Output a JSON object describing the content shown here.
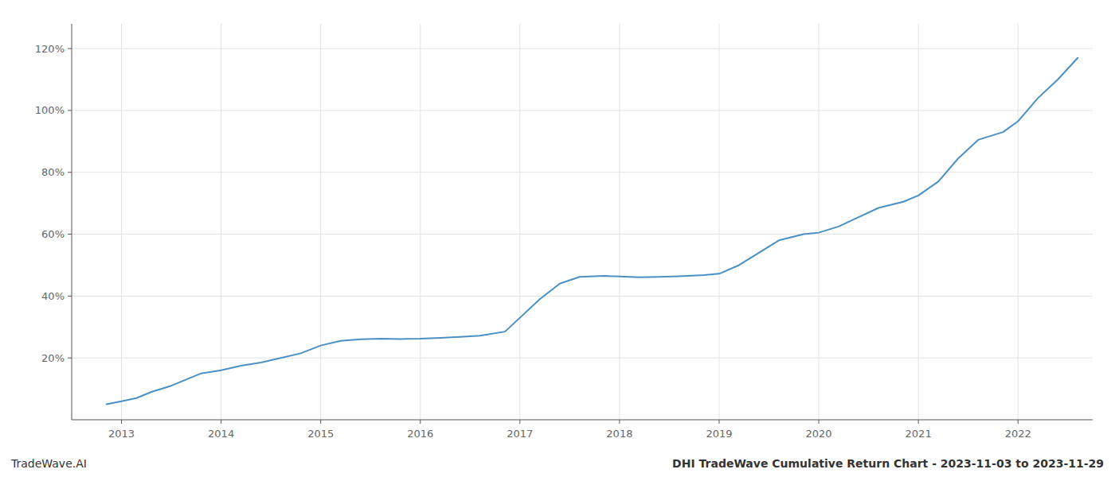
{
  "chart_data": {
    "type": "line",
    "title": "DHI TradeWave Cumulative Return Chart - 2023-11-03 to 2023-11-29",
    "annotations": [
      "TradeWave.AI"
    ],
    "color": "#4a90c4",
    "grid": true,
    "x": [
      2012.85,
      2013.0,
      2013.15,
      2013.3,
      2013.5,
      2013.65,
      2013.8,
      2014.0,
      2014.2,
      2014.4,
      2014.6,
      2014.8,
      2015.0,
      2015.2,
      2015.4,
      2015.6,
      2015.8,
      2016.0,
      2016.2,
      2016.4,
      2016.6,
      2016.85,
      2017.0,
      2017.2,
      2017.4,
      2017.6,
      2017.85,
      2018.0,
      2018.2,
      2018.4,
      2018.6,
      2018.85,
      2019.0,
      2019.2,
      2019.4,
      2019.6,
      2019.85,
      2020.0,
      2020.2,
      2020.4,
      2020.6,
      2020.85,
      2021.0,
      2021.2,
      2021.4,
      2021.6,
      2021.85,
      2022.0,
      2022.2,
      2022.4,
      2022.6
    ],
    "values": [
      0.05,
      0.06,
      0.07,
      0.09,
      0.11,
      0.13,
      0.15,
      0.16,
      0.175,
      0.185,
      0.2,
      0.215,
      0.24,
      0.255,
      0.26,
      0.262,
      0.261,
      0.262,
      0.265,
      0.268,
      0.272,
      0.285,
      0.33,
      0.39,
      0.44,
      0.462,
      0.465,
      0.463,
      0.461,
      0.462,
      0.464,
      0.468,
      0.472,
      0.5,
      0.54,
      0.58,
      0.6,
      0.605,
      0.625,
      0.655,
      0.685,
      0.705,
      0.725,
      0.77,
      0.845,
      0.905,
      0.93,
      0.965,
      1.04,
      1.1,
      1.17
    ],
    "xlim": [
      2012.5,
      2022.75
    ],
    "xticks": [
      2013,
      2014,
      2015,
      2016,
      2017,
      2018,
      2019,
      2020,
      2021,
      2022
    ],
    "ylim": [
      0.0,
      1.28
    ],
    "yticks": [
      {
        "value": 0.2,
        "label": "20%"
      },
      {
        "value": 0.4,
        "label": "40%"
      },
      {
        "value": 0.6,
        "label": "60%"
      },
      {
        "value": 0.8,
        "label": "80%"
      },
      {
        "value": 1.0,
        "label": "100%"
      },
      {
        "value": 1.2,
        "label": "120%"
      }
    ]
  }
}
